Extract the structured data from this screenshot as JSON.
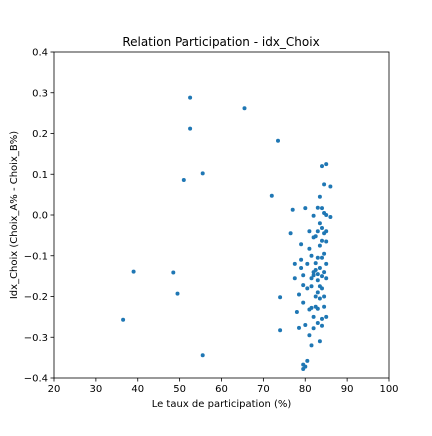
{
  "chart_data": {
    "type": "scatter",
    "title": "Relation Participation - idx_Choix",
    "xlabel": "Le taux de participation (%)",
    "ylabel": "Idx_Choix (Choix_A% - Choix_B%)",
    "xlim": [
      20,
      100
    ],
    "ylim": [
      -0.4,
      0.4
    ],
    "xticks": [
      "20",
      "30",
      "40",
      "50",
      "60",
      "70",
      "80",
      "90",
      "100"
    ],
    "yticks": [
      "0.4",
      "0.3",
      "0.2",
      "0.1",
      "0.0",
      "−0.1",
      "−0.2",
      "−0.3",
      "−0.4"
    ],
    "marker_color": "#1f77b4",
    "grid": false,
    "legend": "none",
    "points": [
      [
        36.5,
        -0.257
      ],
      [
        39.0,
        -0.139
      ],
      [
        48.5,
        -0.141
      ],
      [
        49.5,
        -0.193
      ],
      [
        51.0,
        0.086
      ],
      [
        52.5,
        0.288
      ],
      [
        52.5,
        0.212
      ],
      [
        55.5,
        -0.344
      ],
      [
        55.5,
        0.102
      ],
      [
        65.5,
        0.262
      ],
      [
        72.0,
        0.047
      ],
      [
        73.5,
        0.182
      ],
      [
        74.0,
        -0.202
      ],
      [
        74.0,
        -0.283
      ],
      [
        76.5,
        -0.045
      ],
      [
        77.0,
        0.013
      ],
      [
        77.5,
        -0.12
      ],
      [
        77.5,
        -0.155
      ],
      [
        78.0,
        -0.238
      ],
      [
        78.5,
        -0.195
      ],
      [
        78.5,
        -0.277
      ],
      [
        79.0,
        -0.072
      ],
      [
        79.0,
        -0.11
      ],
      [
        79.0,
        -0.13
      ],
      [
        79.5,
        -0.148
      ],
      [
        79.5,
        -0.172
      ],
      [
        79.5,
        -0.215
      ],
      [
        79.5,
        -0.367
      ],
      [
        79.5,
        -0.378
      ],
      [
        80.0,
        -0.372
      ],
      [
        80.0,
        -0.27
      ],
      [
        80.0,
        0.017
      ],
      [
        80.5,
        -0.12
      ],
      [
        80.5,
        -0.18
      ],
      [
        80.5,
        -0.358
      ],
      [
        81.0,
        -0.04
      ],
      [
        81.0,
        -0.232
      ],
      [
        81.0,
        -0.295
      ],
      [
        81.0,
        -0.083
      ],
      [
        81.5,
        -0.175
      ],
      [
        81.5,
        -0.155
      ],
      [
        81.5,
        -0.1
      ],
      [
        81.5,
        -0.32
      ],
      [
        81.5,
        -0.228
      ],
      [
        82.0,
        -0.14
      ],
      [
        82.0,
        -0.148
      ],
      [
        82.0,
        -0.055
      ],
      [
        82.0,
        -0.002
      ],
      [
        82.0,
        -0.25
      ],
      [
        82.0,
        -0.278
      ],
      [
        82.5,
        -0.135
      ],
      [
        82.5,
        -0.118
      ],
      [
        82.5,
        -0.052
      ],
      [
        82.5,
        -0.2
      ],
      [
        82.5,
        -0.225
      ],
      [
        83.0,
        0.018
      ],
      [
        83.0,
        -0.04
      ],
      [
        83.0,
        -0.105
      ],
      [
        83.0,
        -0.145
      ],
      [
        83.0,
        -0.16
      ],
      [
        83.0,
        -0.19
      ],
      [
        83.0,
        -0.23
      ],
      [
        83.0,
        -0.265
      ],
      [
        83.5,
        0.045
      ],
      [
        83.5,
        -0.02
      ],
      [
        83.5,
        -0.075
      ],
      [
        83.5,
        -0.13
      ],
      [
        83.5,
        -0.175
      ],
      [
        83.5,
        -0.205
      ],
      [
        83.5,
        -0.31
      ],
      [
        84.0,
        0.12
      ],
      [
        84.0,
        0.017
      ],
      [
        84.0,
        -0.032
      ],
      [
        84.0,
        -0.063
      ],
      [
        84.0,
        -0.105
      ],
      [
        84.0,
        -0.15
      ],
      [
        84.0,
        -0.18
      ],
      [
        84.0,
        -0.255
      ],
      [
        84.0,
        -0.272
      ],
      [
        84.5,
        0.075
      ],
      [
        84.5,
        0.005
      ],
      [
        84.5,
        -0.045
      ],
      [
        84.5,
        -0.095
      ],
      [
        84.5,
        -0.14
      ],
      [
        84.5,
        -0.225
      ],
      [
        85.0,
        0.125
      ],
      [
        85.0,
        0.0
      ],
      [
        85.0,
        -0.04
      ],
      [
        85.0,
        -0.065
      ],
      [
        85.0,
        -0.12
      ],
      [
        85.0,
        -0.155
      ],
      [
        85.0,
        -0.25
      ],
      [
        86.0,
        0.07
      ],
      [
        86.0,
        -0.005
      ],
      [
        84.5,
        -0.2
      ]
    ]
  }
}
